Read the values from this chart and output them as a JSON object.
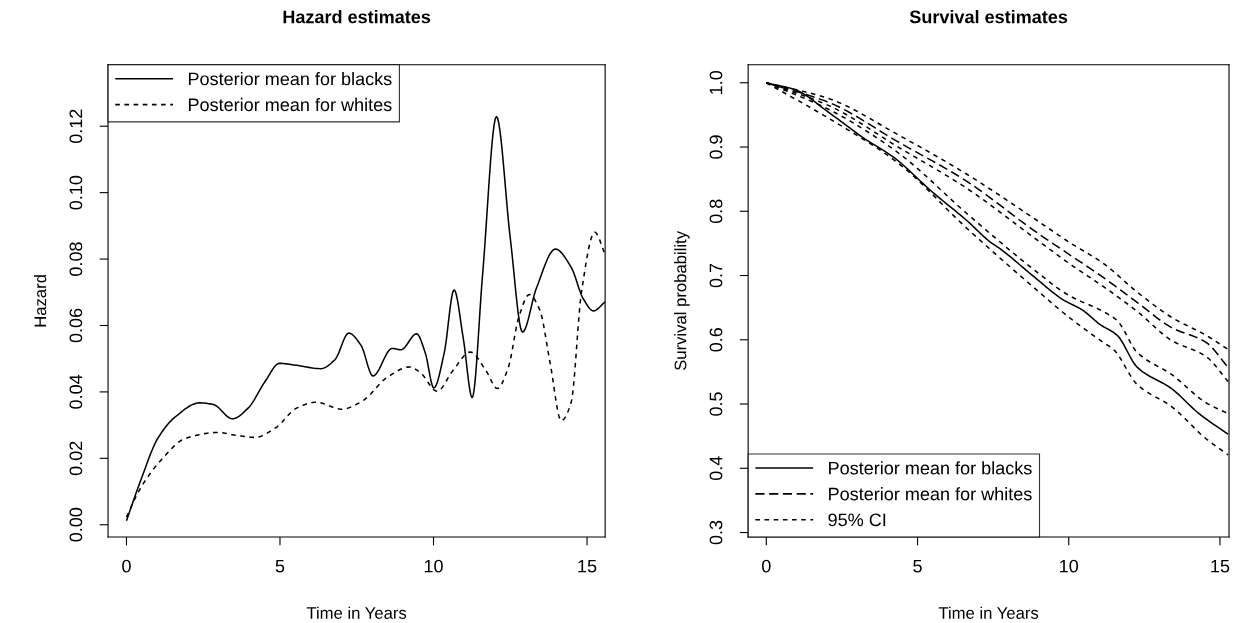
{
  "chart_data": [
    {
      "type": "line",
      "title": "Hazard estimates",
      "xlabel": "Time in Years",
      "ylabel": "Hazard",
      "xlim": [
        -0.6,
        15.59
      ],
      "xticks": [
        0,
        5,
        10,
        15
      ],
      "ylim": [
        -0.0037,
        0.1385
      ],
      "yticks": [
        {
          "value": 0,
          "label": "0.00"
        },
        {
          "value": 0.02,
          "label": "0.02"
        },
        {
          "value": 0.04,
          "label": "0.04"
        },
        {
          "value": 0.06,
          "label": "0.06"
        },
        {
          "value": 0.08,
          "label": "0.08"
        },
        {
          "value": 0.1,
          "label": "0.10"
        },
        {
          "value": 0.12,
          "label": "0.12"
        }
      ],
      "grid": false,
      "legend": "top left",
      "marker": "none",
      "series": [
        {
          "name": "Posterior mean for blacks",
          "color": "#000000",
          "line_style": "solid",
          "x": [
            0,
            0.45,
            1.02,
            1.58,
            2.38,
            2.83,
            3.45,
            3.96,
            4.52,
            4.98,
            5.54,
            6.33,
            6.79,
            7.24,
            7.64,
            8.03,
            8.65,
            8.94,
            9.45,
            9.73,
            10.01,
            10.35,
            10.67,
            10.97,
            11.26,
            11.6,
            12.05,
            12.5,
            12.9,
            13.35,
            13.97,
            14.48,
            14.88,
            15.21,
            15.59
          ],
          "values": [
            0.0012,
            0.013,
            0.026,
            0.0324,
            0.0367,
            0.0362,
            0.0319,
            0.0351,
            0.0432,
            0.0486,
            0.048,
            0.047,
            0.0497,
            0.0577,
            0.054,
            0.0448,
            0.0531,
            0.0527,
            0.0575,
            0.0518,
            0.0412,
            0.0518,
            0.0707,
            0.0561,
            0.0383,
            0.0755,
            0.1229,
            0.0863,
            0.058,
            0.0712,
            0.083,
            0.0776,
            0.068,
            0.0644,
            0.0671
          ]
        },
        {
          "name": "Posterior mean for whites",
          "color": "#000000",
          "line_style": "dashed",
          "x": [
            0,
            0.45,
            1.13,
            1.92,
            3.0,
            3.51,
            4.19,
            4.86,
            5.54,
            6.17,
            7.01,
            7.69,
            8.48,
            9.22,
            9.56,
            10.12,
            10.63,
            11.2,
            11.71,
            12.08,
            12.44,
            12.78,
            13.12,
            13.46,
            13.8,
            14.16,
            14.48,
            14.82,
            15.25,
            15.59
          ],
          "values": [
            0.0023,
            0.0109,
            0.0195,
            0.026,
            0.0278,
            0.027,
            0.0263,
            0.0292,
            0.0351,
            0.0369,
            0.0348,
            0.0373,
            0.0443,
            0.0475,
            0.0459,
            0.0402,
            0.0464,
            0.052,
            0.0464,
            0.041,
            0.0475,
            0.0626,
            0.0693,
            0.0647,
            0.0486,
            0.0313,
            0.0367,
            0.0701,
            0.0881,
            0.0814
          ]
        }
      ]
    },
    {
      "type": "line",
      "title": "Survival estimates",
      "xlabel": "Time in Years",
      "ylabel": "Survival probability",
      "xlim": [
        -0.6,
        15.3
      ],
      "xticks": [
        0,
        5,
        10,
        15
      ],
      "ylim": [
        0.293,
        1.028
      ],
      "yticks": [
        {
          "value": 0.3,
          "label": "0.3"
        },
        {
          "value": 0.4,
          "label": "0.4"
        },
        {
          "value": 0.5,
          "label": "0.5"
        },
        {
          "value": 0.6,
          "label": "0.6"
        },
        {
          "value": 0.7,
          "label": "0.7"
        },
        {
          "value": 0.8,
          "label": "0.8"
        },
        {
          "value": 0.9,
          "label": "0.9"
        },
        {
          "value": 1.0,
          "label": "1.0"
        }
      ],
      "grid": false,
      "legend": "bottom left",
      "marker": "none",
      "series": [
        {
          "name": "Posterior mean for blacks",
          "color": "#000000",
          "line_style": "solid",
          "x": [
            0,
            0.96,
            2.09,
            3.22,
            4.24,
            5.49,
            6.62,
            7.41,
            7.75,
            8.88,
            9.79,
            10.46,
            11.03,
            11.6,
            12.27,
            13.4,
            14.31,
            15.27
          ],
          "values": [
            1.0,
            0.989,
            0.953,
            0.914,
            0.883,
            0.83,
            0.786,
            0.752,
            0.741,
            0.697,
            0.663,
            0.646,
            0.624,
            0.607,
            0.557,
            0.524,
            0.485,
            0.453
          ]
        },
        {
          "name": "Posterior mean for whites",
          "color": "#000000",
          "line_style": "long_dashed",
          "x": [
            0,
            2.09,
            4.36,
            6.62,
            8.88,
            10.01,
            11.14,
            12.27,
            13.4,
            14.54,
            15.27
          ],
          "values": [
            1.0,
            0.969,
            0.908,
            0.847,
            0.769,
            0.733,
            0.697,
            0.658,
            0.619,
            0.596,
            0.557
          ]
        },
        {
          "name": "95% CI",
          "color": "#000000",
          "line_style": "dashed",
          "x": [
            0,
            2.09,
            4.36,
            6.62,
            8.88,
            10.01,
            11.14,
            11.48,
            12.27,
            13.4,
            14.54,
            15.27
          ],
          "values": [
            1.0,
            0.944,
            0.875,
            0.774,
            0.68,
            0.635,
            0.596,
            0.585,
            0.53,
            0.496,
            0.446,
            0.421
          ]
        },
        {
          "color": "#000000",
          "line_style": "dashed",
          "x": [
            0,
            2.09,
            4.36,
            6.62,
            8.88,
            10.01,
            11.14,
            11.6,
            12.27,
            13.4,
            14.54,
            15.27
          ],
          "values": [
            1.0,
            0.958,
            0.891,
            0.797,
            0.708,
            0.669,
            0.644,
            0.63,
            0.58,
            0.546,
            0.502,
            0.485
          ]
        },
        {
          "color": "#000000",
          "line_style": "dashed",
          "x": [
            0,
            2.09,
            4.36,
            6.62,
            8.88,
            10.01,
            11.14,
            12.27,
            13.4,
            14.54,
            15.27
          ],
          "values": [
            1.0,
            0.975,
            0.919,
            0.858,
            0.788,
            0.752,
            0.719,
            0.674,
            0.635,
            0.607,
            0.585
          ]
        },
        {
          "color": "#000000",
          "line_style": "dashed",
          "x": [
            0,
            2.09,
            4.36,
            6.62,
            8.88,
            10.01,
            11.14,
            12.27,
            13.4,
            14.54,
            15.27
          ],
          "values": [
            1.0,
            0.964,
            0.9,
            0.836,
            0.758,
            0.719,
            0.683,
            0.644,
            0.599,
            0.574,
            0.535
          ]
        }
      ]
    }
  ]
}
